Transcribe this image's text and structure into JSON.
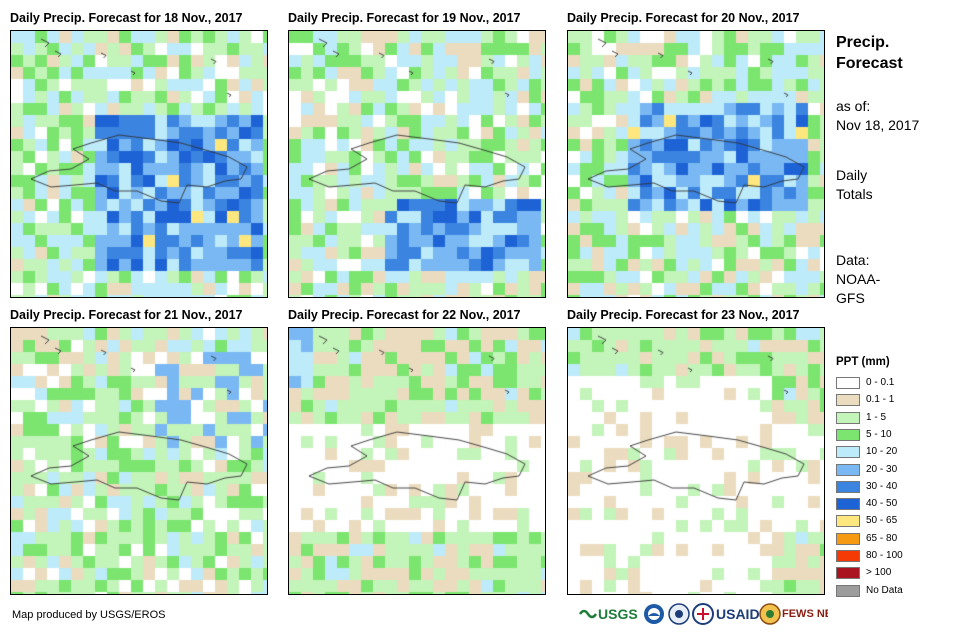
{
  "panels": [
    {
      "title": "Daily Precip. Forecast for 18 Nov., 2017",
      "seed": 18,
      "wet": "south"
    },
    {
      "title": "Daily Precip. Forecast for 19 Nov., 2017",
      "seed": 19,
      "wet": "band"
    },
    {
      "title": "Daily Precip. Forecast for 20 Nov., 2017",
      "seed": 20,
      "wet": "island"
    },
    {
      "title": "Daily Precip. Forecast for 21 Nov., 2017",
      "seed": 21,
      "wet": "light"
    },
    {
      "title": "Daily Precip. Forecast for 22 Nov., 2017",
      "seed": 22,
      "wet": "dry"
    },
    {
      "title": "Daily Precip. Forecast for 23 Nov., 2017",
      "seed": 23,
      "wet": "dryer"
    }
  ],
  "sidebar": {
    "heading_line1": "Precip.",
    "heading_line2": "Forecast",
    "asof_line1": "as of:",
    "asof_line2": "Nov 18, 2017",
    "totals_line1": "Daily",
    "totals_line2": "Totals",
    "data_line1": "Data:",
    "data_line2": "NOAA-",
    "data_line3": "GFS"
  },
  "legend": {
    "title": "PPT (mm)",
    "items": [
      {
        "label": "0 - 0.1",
        "color": "#ffffff"
      },
      {
        "label": "0.1 - 1",
        "color": "#ecdcbf"
      },
      {
        "label": "1 - 5",
        "color": "#c3f4b9"
      },
      {
        "label": "5 - 10",
        "color": "#7be56f"
      },
      {
        "label": "10 - 20",
        "color": "#bdebf9"
      },
      {
        "label": "20 - 30",
        "color": "#7ab8f3"
      },
      {
        "label": "30 - 40",
        "color": "#3b84e0"
      },
      {
        "label": "40 - 50",
        "color": "#1e63d6"
      },
      {
        "label": "50 - 65",
        "color": "#fde77e"
      },
      {
        "label": "65 - 80",
        "color": "#f79a13"
      },
      {
        "label": "80 - 100",
        "color": "#f53a06"
      },
      {
        "label": "> 100",
        "color": "#a9141e"
      },
      {
        "label": "No Data",
        "color": "#9c9c9c"
      }
    ]
  },
  "footer": {
    "credit": "Map produced by USGS/EROS"
  },
  "logos": {
    "usgs": "USGS",
    "usaid": "USAID",
    "fewsnet": "FEWS NET"
  }
}
